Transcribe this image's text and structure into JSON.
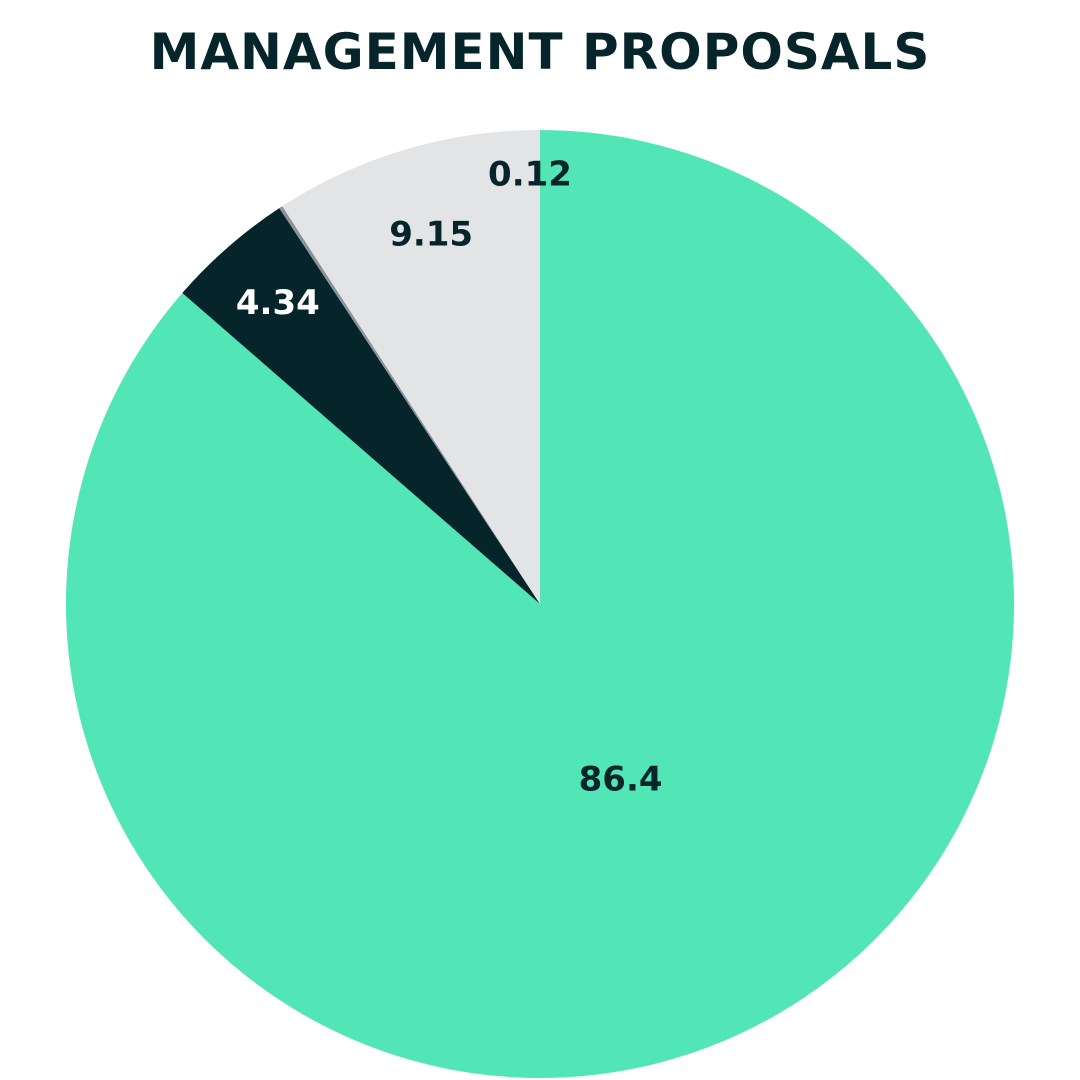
{
  "chart_data": {
    "type": "pie",
    "title": "MANAGEMENT PROPOSALS",
    "start": "12 o'clock",
    "direction": "clockwise",
    "slices": [
      {
        "label": "86.4",
        "value": 86.4,
        "color": "#52e5b6",
        "label_color": "#06252a"
      },
      {
        "label": "4.34",
        "value": 4.34,
        "color": "#06252a",
        "label_color": "#ffffff"
      },
      {
        "label": "",
        "value": 0.12,
        "color": "#8a9499",
        "label_color": "#06252a"
      },
      {
        "label": "9.15",
        "value": 9.15,
        "color": "#e3e4e6",
        "label_color": "#06252a"
      }
    ],
    "outside_labels": [
      {
        "label": "0.12",
        "color": "#06252a"
      }
    ]
  }
}
